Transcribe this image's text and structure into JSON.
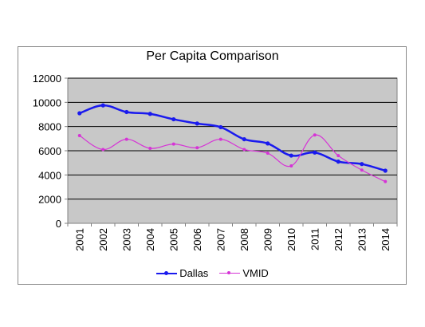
{
  "chart_data": {
    "type": "line",
    "title": "Per Capita Comparison",
    "xlabel": "",
    "ylabel": "",
    "categories": [
      "2001",
      "2002",
      "2003",
      "2004",
      "2005",
      "2006",
      "2007",
      "2008",
      "2009",
      "2010",
      "2011",
      "2012",
      "2013",
      "2014"
    ],
    "ylim": [
      0,
      12000
    ],
    "yticks": [
      "0",
      "2000",
      "4000",
      "6000",
      "8000",
      "10000",
      "12000"
    ],
    "grid": true,
    "legend_position": "bottom",
    "series": [
      {
        "name": "Dallas",
        "color": "#1a1aee",
        "values": [
          9100,
          9750,
          9200,
          9050,
          8600,
          8250,
          7950,
          6950,
          6600,
          5600,
          5850,
          5100,
          4900,
          4350
        ]
      },
      {
        "name": "VMID",
        "color": "#d633d6",
        "values": [
          7250,
          6100,
          6950,
          6200,
          6550,
          6250,
          6950,
          6100,
          5800,
          4750,
          7300,
          5600,
          4400,
          3450
        ]
      }
    ]
  }
}
